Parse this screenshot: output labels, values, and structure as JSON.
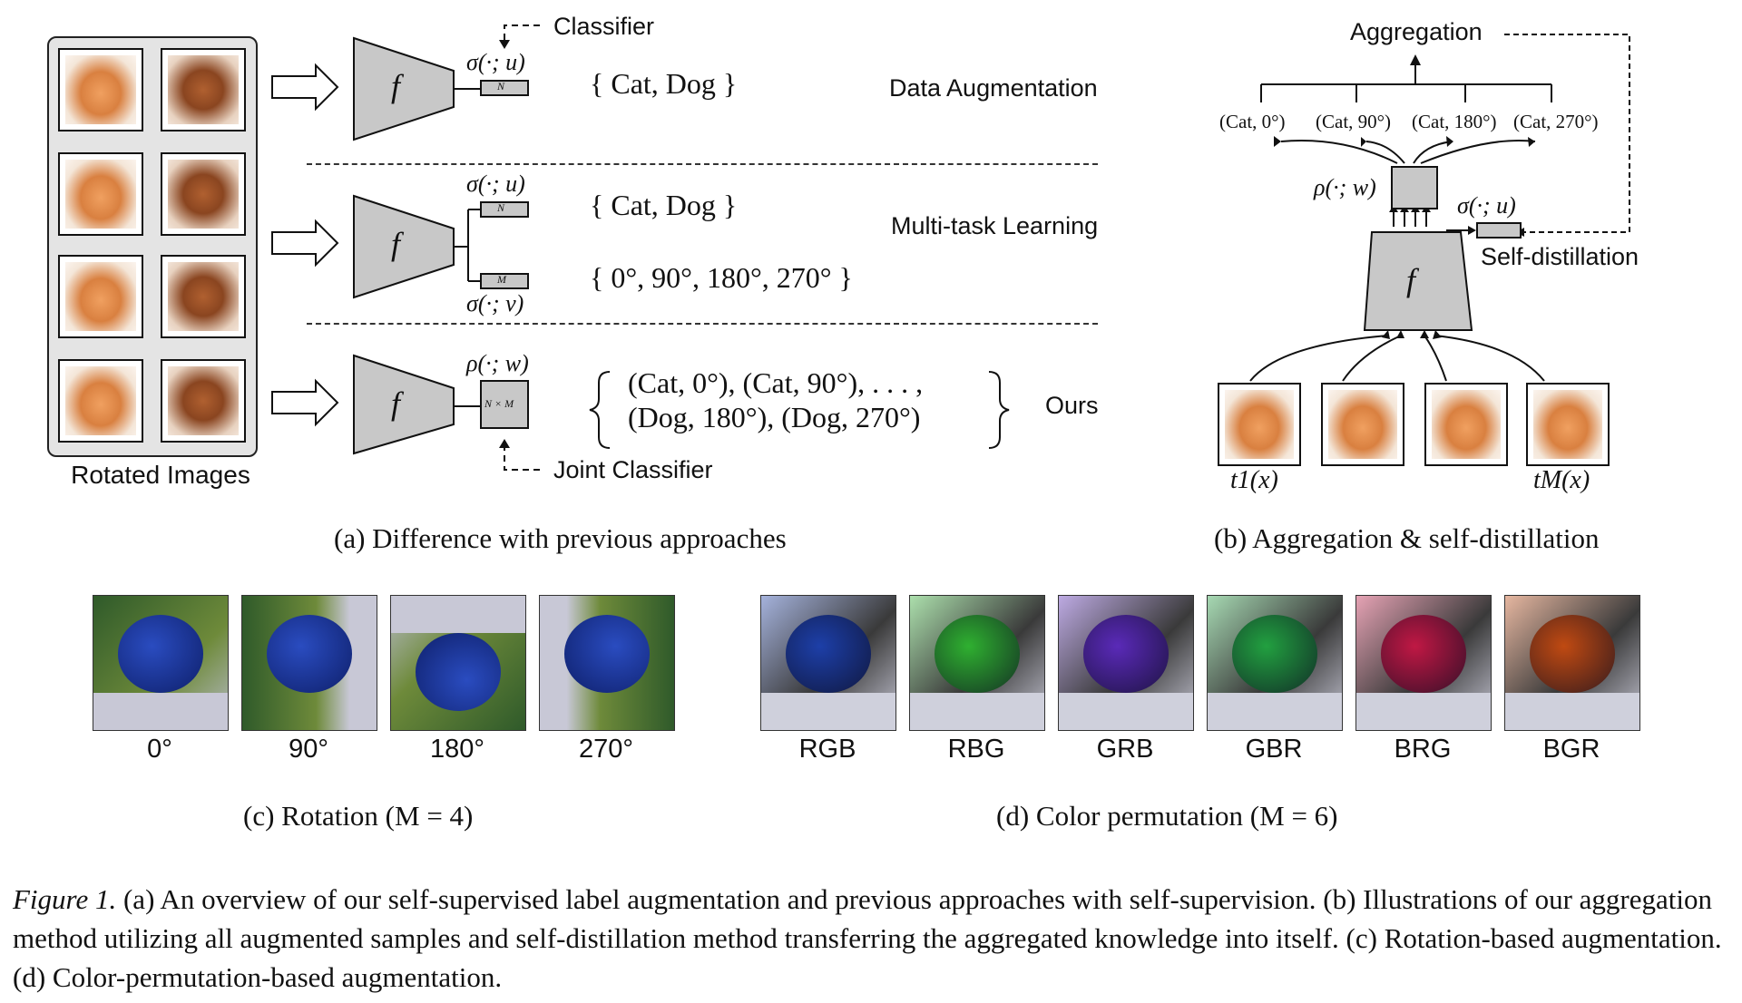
{
  "panel_a": {
    "rotated_images_label": "Rotated Images",
    "classifier_label": "Classifier",
    "joint_classifier_label": "Joint Classifier",
    "f": "f",
    "sigma_u": "σ(·; u)",
    "sigma_v": "σ(·; v)",
    "rho_w": "ρ(·; w)",
    "head_N": "N",
    "head_M": "M",
    "head_NM": "N × M",
    "row1_set": "{  Cat,  Dog  }",
    "row1_task": "Data Augmentation",
    "row2_set_a": "{  Cat,  Dog  }",
    "row2_set_b": "{  0°,  90°,  180°,  270°  }",
    "row2_task": "Multi-task Learning",
    "row3_line1": "(Cat, 0°),  (Cat, 90°),   . . . ,",
    "row3_line2": "(Dog, 180°),  (Dog, 270°)",
    "row3_task": "Ours",
    "caption": "(a)  Difference with previous approaches"
  },
  "panel_b": {
    "aggregation": "Aggregation",
    "outputs": [
      "(Cat, 0°)",
      "(Cat, 90°)",
      "(Cat, 180°)",
      "(Cat, 270°)"
    ],
    "rho_w": "ρ(·; w)",
    "sigma_u": "σ(·; u)",
    "self_distillation": "Self-distillation",
    "f": "f",
    "t1": "t1(x)",
    "tM": "tM(x)",
    "caption": "(b)  Aggregation & self-distillation"
  },
  "panel_c": {
    "labels": [
      "0°",
      "90°",
      "180°",
      "270°"
    ],
    "caption": "(c)  Rotation (M = 4)"
  },
  "panel_d": {
    "labels": [
      "RGB",
      "RBG",
      "GRB",
      "GBR",
      "BRG",
      "BGR"
    ],
    "colors": [
      "#1d3fa8",
      "#2fb030",
      "#5a2ab8",
      "#22a040",
      "#c01844",
      "#c04a12"
    ],
    "caption": "(d)  Color permutation (M = 6)"
  },
  "figure_caption": {
    "label": "Figure 1.",
    "text": " (a) An overview of our self-supervised label augmentation and previous approaches with self-supervision. (b) Illustrations of our aggregation method utilizing all augmented samples and self-distillation method transferring the aggregated knowledge into itself. (c) Rotation-based augmentation. (d) Color-permutation-based augmentation."
  }
}
